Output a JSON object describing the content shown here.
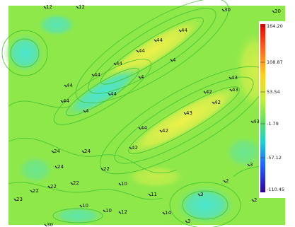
{
  "colors": {
    "background": "#ffffff",
    "field_base": "#8ee84a",
    "field_light": "#c8ec4c",
    "field_yellow": "#e2ee48",
    "field_cyan": "#56e8c8",
    "field_green": "#60d870",
    "contour": "#3fbf2f",
    "point": "#000000"
  },
  "colorbar": {
    "tick_labels": [
      "164.20",
      "108.87",
      "53.54",
      "-1.79",
      "-57.12",
      "-110.45"
    ],
    "stops": [
      "#e00000",
      "#ff6020",
      "#ffd020",
      "#c0f040",
      "#60e060",
      "#20d0d0",
      "#2060ff",
      "#3000a0"
    ]
  },
  "points": [
    {
      "label": "12"
    },
    {
      "label": "12"
    },
    {
      "label": "30"
    },
    {
      "label": "30"
    },
    {
      "label": "44"
    },
    {
      "label": "44"
    },
    {
      "label": "44"
    },
    {
      "label": "44"
    },
    {
      "label": "44"
    },
    {
      "label": "44"
    },
    {
      "label": "44"
    },
    {
      "label": "4"
    },
    {
      "label": "44"
    },
    {
      "label": "4"
    },
    {
      "label": "43"
    },
    {
      "label": "43"
    },
    {
      "label": "42"
    },
    {
      "label": "42"
    },
    {
      "label": "43"
    },
    {
      "label": "44"
    },
    {
      "label": "42"
    },
    {
      "label": "42"
    },
    {
      "label": "4"
    },
    {
      "label": "43"
    },
    {
      "label": "24"
    },
    {
      "label": "24"
    },
    {
      "label": "24"
    },
    {
      "label": "22"
    },
    {
      "label": "3"
    },
    {
      "label": "22"
    },
    {
      "label": "22"
    },
    {
      "label": "22"
    },
    {
      "label": "23"
    },
    {
      "label": "10"
    },
    {
      "label": "10"
    },
    {
      "label": "11"
    },
    {
      "label": "3"
    },
    {
      "label": "2"
    },
    {
      "label": "2"
    },
    {
      "label": "10"
    },
    {
      "label": "12"
    },
    {
      "label": "14"
    },
    {
      "label": "3"
    },
    {
      "label": "30"
    }
  ]
}
